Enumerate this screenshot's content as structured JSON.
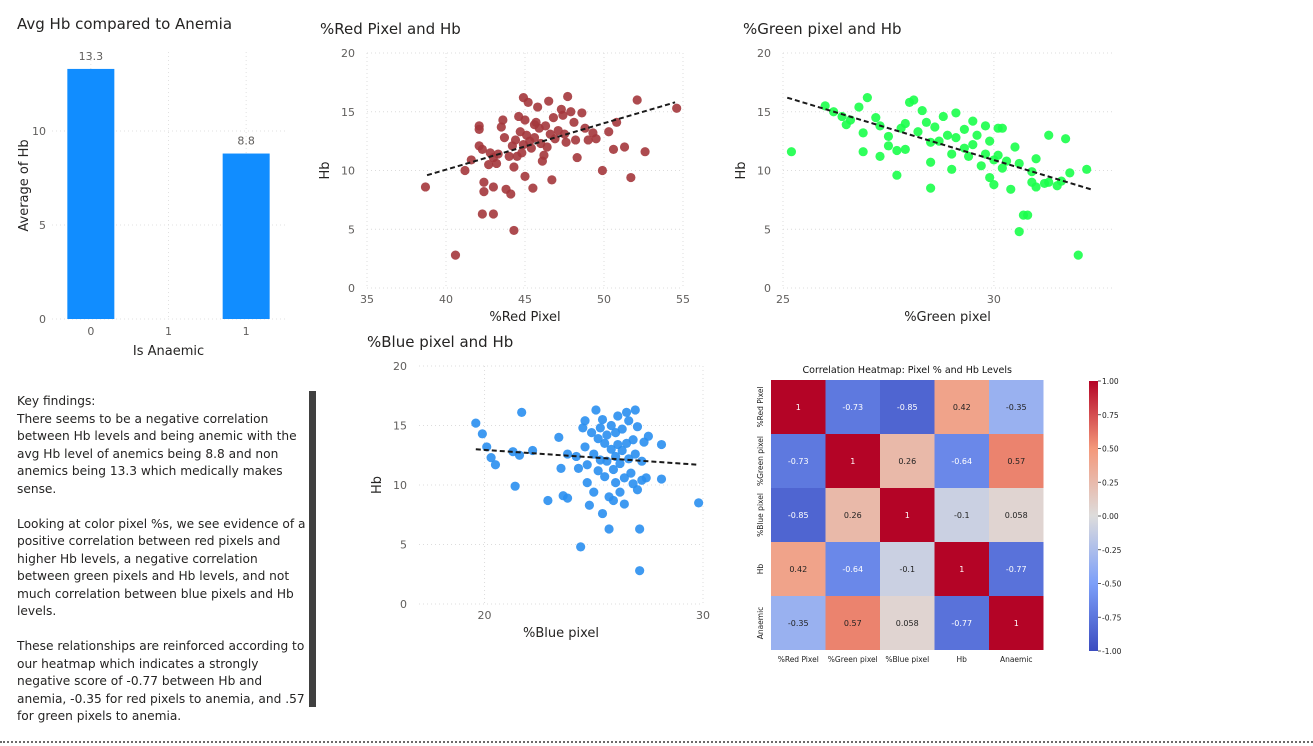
{
  "bar_title": "Avg Hb compared to Anemia",
  "red_title": "%Red Pixel and Hb",
  "green_title": "%Green pixel and Hb",
  "blue_title": "%Blue pixel and Hb",
  "findings": {
    "p1": "Key findings:\nThere seems to be a negative correlation between Hb levels and being anemic with the avg Hb level of anemics being 8.8 and non anemics being 13.3 which medically makes sense.",
    "p2": "Looking at color pixel %s, we see evidence of a positive correlation between red pixels and higher Hb levels, a negative correlation between green pixels and Hb levels, and not much correlation between blue pixels and Hb levels.",
    "p3": "These relationships are reinforced according to our heatmap which indicates a strongly negative score of -0.77 between Hb and anemia, -0.35 for red pixels to anemia, and .57 for green pixels to anemia."
  },
  "colors": {
    "bar": "#118dff",
    "red": "#a4373c",
    "green": "#1aff4a",
    "blue": "#2a8ff0",
    "trend": "#1a1a1a"
  },
  "chart_data": [
    {
      "type": "bar",
      "title": "Avg Hb compared to Anemia",
      "xlabel": "Is Anaemic",
      "ylabel": "Average of Hb",
      "categories": [
        "0",
        "1",
        "1"
      ],
      "values": [
        13.3,
        null,
        8.8
      ],
      "data_labels": [
        "13.3",
        "",
        "8.8"
      ],
      "ylim": [
        0,
        14.2
      ],
      "yticks": [
        0,
        5,
        10
      ]
    },
    {
      "type": "scatter",
      "title": "%Red Pixel and Hb",
      "xlabel": "%Red Pixel",
      "ylabel": "Hb",
      "xlim": [
        35,
        55
      ],
      "ylim": [
        0,
        20
      ],
      "xticks": [
        35,
        40,
        45,
        50,
        55
      ],
      "yticks": [
        0,
        5,
        10,
        15,
        20
      ],
      "trend": [
        [
          38.8,
          9.6
        ],
        [
          54.5,
          15.8
        ]
      ],
      "points": [
        [
          38.7,
          8.6
        ],
        [
          40.6,
          2.8
        ],
        [
          41.2,
          10.0
        ],
        [
          41.6,
          10.9
        ],
        [
          42.1,
          13.8
        ],
        [
          42.1,
          13.5
        ],
        [
          42.1,
          12.1
        ],
        [
          42.3,
          11.8
        ],
        [
          42.4,
          9.0
        ],
        [
          42.4,
          8.2
        ],
        [
          42.3,
          6.3
        ],
        [
          42.7,
          10.5
        ],
        [
          42.8,
          11.5
        ],
        [
          43.0,
          11.1
        ],
        [
          43.0,
          6.3
        ],
        [
          43.0,
          8.6
        ],
        [
          43.2,
          10.6
        ],
        [
          43.3,
          11.4
        ],
        [
          43.7,
          12.8
        ],
        [
          43.5,
          13.7
        ],
        [
          43.6,
          14.3
        ],
        [
          43.8,
          8.4
        ],
        [
          44.0,
          11.2
        ],
        [
          44.1,
          8.0
        ],
        [
          44.2,
          12.1
        ],
        [
          44.3,
          10.3
        ],
        [
          44.4,
          12.6
        ],
        [
          44.5,
          11.2
        ],
        [
          44.6,
          14.6
        ],
        [
          44.7,
          13.3
        ],
        [
          44.8,
          11.5
        ],
        [
          44.9,
          12.2
        ],
        [
          44.9,
          16.2
        ],
        [
          45.0,
          14.3
        ],
        [
          45.0,
          9.5
        ],
        [
          45.1,
          13.0
        ],
        [
          45.2,
          15.8
        ],
        [
          45.3,
          12.5
        ],
        [
          45.4,
          11.9
        ],
        [
          45.5,
          8.5
        ],
        [
          45.6,
          13.9
        ],
        [
          45.6,
          12.8
        ],
        [
          45.7,
          14.1
        ],
        [
          45.8,
          15.4
        ],
        [
          45.9,
          13.6
        ],
        [
          46.0,
          12.3
        ],
        [
          46.1,
          10.8
        ],
        [
          46.2,
          11.3
        ],
        [
          46.3,
          13.8
        ],
        [
          46.4,
          12.0
        ],
        [
          46.5,
          15.9
        ],
        [
          46.6,
          13.1
        ],
        [
          46.7,
          9.2
        ],
        [
          46.8,
          14.5
        ],
        [
          46.9,
          12.7
        ],
        [
          47.1,
          13.4
        ],
        [
          47.3,
          15.2
        ],
        [
          47.4,
          14.7
        ],
        [
          47.5,
          13.1
        ],
        [
          47.6,
          12.4
        ],
        [
          47.7,
          16.3
        ],
        [
          47.9,
          15.0
        ],
        [
          48.1,
          14.1
        ],
        [
          48.2,
          12.6
        ],
        [
          48.3,
          11.1
        ],
        [
          48.6,
          14.9
        ],
        [
          48.8,
          13.6
        ],
        [
          49.0,
          12.6
        ],
        [
          49.3,
          13.2
        ],
        [
          49.5,
          12.7
        ],
        [
          49.9,
          10.0
        ],
        [
          50.3,
          13.3
        ],
        [
          50.6,
          11.8
        ],
        [
          50.8,
          14.1
        ],
        [
          51.3,
          12.0
        ],
        [
          51.7,
          9.4
        ],
        [
          52.1,
          16.0
        ],
        [
          52.6,
          11.6
        ],
        [
          54.6,
          15.3
        ],
        [
          44.3,
          4.9
        ]
      ]
    },
    {
      "type": "scatter",
      "title": "%Green pixel and Hb",
      "xlabel": "%Green pixel",
      "ylabel": "Hb",
      "xlim": [
        25,
        32.8
      ],
      "ylim": [
        0,
        20
      ],
      "xticks": [
        25,
        30
      ],
      "yticks": [
        0,
        5,
        10,
        15,
        20
      ],
      "trend": [
        [
          25.1,
          16.2
        ],
        [
          32.3,
          8.4
        ]
      ],
      "points": [
        [
          25.2,
          11.6
        ],
        [
          26.0,
          15.5
        ],
        [
          26.2,
          15.0
        ],
        [
          26.4,
          14.6
        ],
        [
          26.5,
          13.9
        ],
        [
          26.6,
          14.3
        ],
        [
          26.8,
          15.4
        ],
        [
          27.0,
          16.2
        ],
        [
          26.9,
          13.2
        ],
        [
          26.9,
          11.6
        ],
        [
          27.2,
          14.5
        ],
        [
          27.3,
          13.8
        ],
        [
          27.3,
          11.2
        ],
        [
          27.5,
          12.9
        ],
        [
          27.5,
          12.1
        ],
        [
          27.7,
          11.7
        ],
        [
          27.7,
          9.6
        ],
        [
          27.8,
          13.6
        ],
        [
          27.9,
          14.0
        ],
        [
          27.9,
          11.8
        ],
        [
          28.0,
          15.8
        ],
        [
          28.1,
          16.0
        ],
        [
          28.2,
          13.3
        ],
        [
          28.3,
          15.1
        ],
        [
          28.4,
          14.1
        ],
        [
          28.5,
          12.4
        ],
        [
          28.5,
          10.7
        ],
        [
          28.5,
          8.5
        ],
        [
          28.6,
          13.7
        ],
        [
          28.7,
          12.5
        ],
        [
          28.8,
          14.6
        ],
        [
          28.9,
          13.0
        ],
        [
          29.0,
          11.4
        ],
        [
          29.0,
          10.1
        ],
        [
          29.1,
          14.9
        ],
        [
          29.1,
          12.8
        ],
        [
          29.3,
          13.5
        ],
        [
          29.3,
          11.9
        ],
        [
          29.4,
          11.2
        ],
        [
          29.5,
          12.2
        ],
        [
          29.5,
          14.2
        ],
        [
          29.6,
          13.0
        ],
        [
          29.7,
          10.4
        ],
        [
          29.8,
          13.8
        ],
        [
          29.8,
          11.4
        ],
        [
          29.9,
          9.4
        ],
        [
          29.9,
          12.5
        ],
        [
          30.0,
          10.9
        ],
        [
          30.0,
          8.8
        ],
        [
          30.1,
          11.3
        ],
        [
          30.1,
          13.6
        ],
        [
          30.2,
          13.6
        ],
        [
          30.2,
          10.2
        ],
        [
          30.3,
          10.8
        ],
        [
          30.4,
          8.4
        ],
        [
          30.5,
          12.0
        ],
        [
          30.6,
          10.6
        ],
        [
          30.6,
          4.8
        ],
        [
          30.7,
          6.2
        ],
        [
          30.8,
          6.2
        ],
        [
          30.9,
          9.9
        ],
        [
          30.9,
          9.0
        ],
        [
          31.0,
          8.6
        ],
        [
          31.0,
          11.0
        ],
        [
          31.2,
          8.9
        ],
        [
          31.3,
          9.0
        ],
        [
          31.3,
          13.0
        ],
        [
          31.5,
          8.7
        ],
        [
          31.6,
          9.1
        ],
        [
          31.7,
          12.7
        ],
        [
          31.8,
          9.8
        ],
        [
          32.0,
          2.8
        ],
        [
          32.2,
          10.1
        ]
      ]
    },
    {
      "type": "scatter",
      "title": "%Blue pixel and Hb",
      "xlabel": "%Blue pixel",
      "ylabel": "Hb",
      "xlim": [
        17,
        30
      ],
      "ylim": [
        0,
        20
      ],
      "xticks": [
        20,
        30
      ],
      "yticks": [
        0,
        5,
        10,
        15,
        20
      ],
      "trend": [
        [
          19.6,
          13.0
        ],
        [
          29.8,
          11.7
        ]
      ],
      "points": [
        [
          19.6,
          15.2
        ],
        [
          19.9,
          14.3
        ],
        [
          20.1,
          13.2
        ],
        [
          20.3,
          12.3
        ],
        [
          20.5,
          11.7
        ],
        [
          21.3,
          12.8
        ],
        [
          21.4,
          9.9
        ],
        [
          21.6,
          12.5
        ],
        [
          21.7,
          16.1
        ],
        [
          22.2,
          12.9
        ],
        [
          22.9,
          8.7
        ],
        [
          23.4,
          14.0
        ],
        [
          23.5,
          11.4
        ],
        [
          23.6,
          9.1
        ],
        [
          23.8,
          12.6
        ],
        [
          23.8,
          8.9
        ],
        [
          24.2,
          12.4
        ],
        [
          24.3,
          11.4
        ],
        [
          24.4,
          4.8
        ],
        [
          24.5,
          14.8
        ],
        [
          24.6,
          15.4
        ],
        [
          24.6,
          13.2
        ],
        [
          24.7,
          11.7
        ],
        [
          24.7,
          10.2
        ],
        [
          24.8,
          8.3
        ],
        [
          24.9,
          14.4
        ],
        [
          25.0,
          12.6
        ],
        [
          25.0,
          9.4
        ],
        [
          25.1,
          16.3
        ],
        [
          25.2,
          13.9
        ],
        [
          25.2,
          11.2
        ],
        [
          25.3,
          14.8
        ],
        [
          25.3,
          12.1
        ],
        [
          25.4,
          15.5
        ],
        [
          25.4,
          7.6
        ],
        [
          25.5,
          13.5
        ],
        [
          25.5,
          10.7
        ],
        [
          25.6,
          14.2
        ],
        [
          25.6,
          12.0
        ],
        [
          25.7,
          9.0
        ],
        [
          25.7,
          6.3
        ],
        [
          25.8,
          15.0
        ],
        [
          25.8,
          13.0
        ],
        [
          25.9,
          11.3
        ],
        [
          25.9,
          8.7
        ],
        [
          26.0,
          14.4
        ],
        [
          26.0,
          12.4
        ],
        [
          26.0,
          10.2
        ],
        [
          26.1,
          15.8
        ],
        [
          26.1,
          13.4
        ],
        [
          26.2,
          11.8
        ],
        [
          26.2,
          9.4
        ],
        [
          26.3,
          14.7
        ],
        [
          26.3,
          12.9
        ],
        [
          26.4,
          10.6
        ],
        [
          26.4,
          8.4
        ],
        [
          26.5,
          16.1
        ],
        [
          26.5,
          13.5
        ],
        [
          26.6,
          12.2
        ],
        [
          26.6,
          15.4
        ],
        [
          26.7,
          11.0
        ],
        [
          26.8,
          13.8
        ],
        [
          26.8,
          10.1
        ],
        [
          26.9,
          16.3
        ],
        [
          26.9,
          12.6
        ],
        [
          27.0,
          14.9
        ],
        [
          27.0,
          9.6
        ],
        [
          27.1,
          6.3
        ],
        [
          27.1,
          2.8
        ],
        [
          27.2,
          12.0
        ],
        [
          27.2,
          10.4
        ],
        [
          27.3,
          13.6
        ],
        [
          27.4,
          10.6
        ],
        [
          27.5,
          14.1
        ],
        [
          28.1,
          13.4
        ],
        [
          28.1,
          10.5
        ],
        [
          29.8,
          8.5
        ]
      ]
    },
    {
      "type": "heatmap",
      "title": "Correlation Heatmap: Pixel % and Hb Levels",
      "labels": [
        "%Red Pixel",
        "%Green pixel",
        "%Blue pixel",
        "Hb",
        "Anaemic"
      ],
      "values": [
        [
          1,
          -0.73,
          -0.85,
          0.42,
          -0.35
        ],
        [
          -0.73,
          1,
          0.26,
          -0.64,
          0.57
        ],
        [
          -0.85,
          0.26,
          1,
          -0.1,
          0.058
        ],
        [
          0.42,
          -0.64,
          -0.1,
          1,
          -0.77
        ],
        [
          -0.35,
          0.57,
          0.058,
          -0.77,
          1
        ]
      ],
      "cell_labels": [
        [
          "1",
          "-0.73",
          "-0.85",
          "0.42",
          "-0.35"
        ],
        [
          "-0.73",
          "1",
          "0.26",
          "-0.64",
          "0.57"
        ],
        [
          "-0.85",
          "0.26",
          "1",
          "-0.1",
          "0.058"
        ],
        [
          "0.42",
          "-0.64",
          "-0.1",
          "1",
          "-0.77"
        ],
        [
          "-0.35",
          "0.57",
          "0.058",
          "-0.77",
          "1"
        ]
      ],
      "colorbar_ticks": [
        "1.00",
        "0.75",
        "0.50",
        "0.25",
        "0.00",
        "-0.25",
        "-0.50",
        "-0.75",
        "-1.00"
      ],
      "vmin": -1,
      "vmax": 1
    }
  ]
}
